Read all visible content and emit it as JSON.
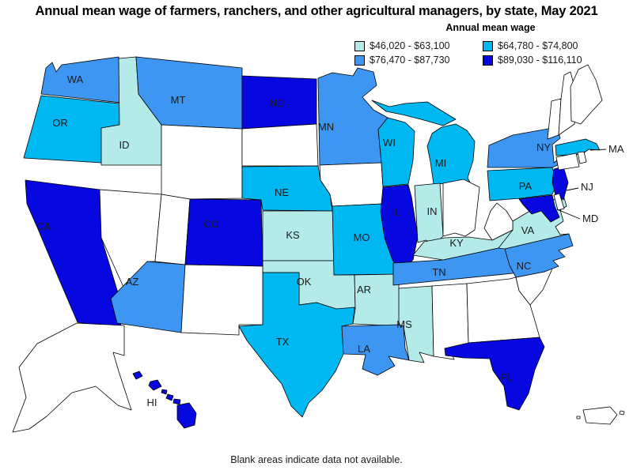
{
  "title": "Annual mean wage of farmers, ranchers, and other agricultural managers, by state, May 2021",
  "legend": {
    "title": "Annual mean wage",
    "no_data_color": "#ffffff",
    "classes": [
      {
        "label": "$46,020 - $63,100",
        "color": "#b4ebe9"
      },
      {
        "label": "$64,780 - $74,800",
        "color": "#00b8f1"
      },
      {
        "label": "$76,470 - $87,730",
        "color": "#3e96f3"
      },
      {
        "label": "$89,030 - $116,110",
        "color": "#0707e0"
      }
    ]
  },
  "footnote": "Blank areas indicate data not available.",
  "chart_data": {
    "type": "choropleth",
    "title": "Annual mean wage of farmers, ranchers, and other agricultural managers, by state, May 2021",
    "legend_title": "Annual mean wage",
    "class_ranges": [
      "$46,020 - $63,100",
      "$64,780 - $74,800",
      "$76,470 - $87,730",
      "$89,030 - $116,110"
    ],
    "no_data_note": "Blank areas indicate data not available.",
    "states": [
      {
        "abbr": "WA",
        "class_index": 2
      },
      {
        "abbr": "OR",
        "class_index": 1
      },
      {
        "abbr": "ID",
        "class_index": 0
      },
      {
        "abbr": "MT",
        "class_index": 2
      },
      {
        "abbr": "WY",
        "class_index": null
      },
      {
        "abbr": "ND",
        "class_index": 3
      },
      {
        "abbr": "SD",
        "class_index": null
      },
      {
        "abbr": "NE",
        "class_index": 1
      },
      {
        "abbr": "KS",
        "class_index": 0
      },
      {
        "abbr": "OK",
        "class_index": 0
      },
      {
        "abbr": "TX",
        "class_index": 1
      },
      {
        "abbr": "MN",
        "class_index": 2
      },
      {
        "abbr": "IA",
        "class_index": null
      },
      {
        "abbr": "MO",
        "class_index": 1
      },
      {
        "abbr": "AR",
        "class_index": 0
      },
      {
        "abbr": "LA",
        "class_index": 2
      },
      {
        "abbr": "WI",
        "class_index": 1
      },
      {
        "abbr": "IL",
        "class_index": 3
      },
      {
        "abbr": "MI",
        "class_index": 1
      },
      {
        "abbr": "IN",
        "class_index": 0
      },
      {
        "abbr": "OH",
        "class_index": null
      },
      {
        "abbr": "KY",
        "class_index": 0
      },
      {
        "abbr": "TN",
        "class_index": 2
      },
      {
        "abbr": "MS",
        "class_index": 0
      },
      {
        "abbr": "AL",
        "class_index": null
      },
      {
        "abbr": "GA",
        "class_index": null
      },
      {
        "abbr": "SC",
        "class_index": null
      },
      {
        "abbr": "FL",
        "class_index": 3
      },
      {
        "abbr": "NC",
        "class_index": 2
      },
      {
        "abbr": "VA",
        "class_index": 0
      },
      {
        "abbr": "WV",
        "class_index": null
      },
      {
        "abbr": "CA",
        "class_index": 3
      },
      {
        "abbr": "NV",
        "class_index": null
      },
      {
        "abbr": "UT",
        "class_index": null
      },
      {
        "abbr": "CO",
        "class_index": 3
      },
      {
        "abbr": "AZ",
        "class_index": 2
      },
      {
        "abbr": "NM",
        "class_index": null
      },
      {
        "abbr": "NY",
        "class_index": 2
      },
      {
        "abbr": "PA",
        "class_index": 1
      },
      {
        "abbr": "NJ",
        "class_index": 3
      },
      {
        "abbr": "MD",
        "class_index": 3
      },
      {
        "abbr": "DE",
        "class_index": null
      },
      {
        "abbr": "MA",
        "class_index": 1
      },
      {
        "abbr": "CT",
        "class_index": null
      },
      {
        "abbr": "RI",
        "class_index": null
      },
      {
        "abbr": "VT",
        "class_index": null
      },
      {
        "abbr": "NH",
        "class_index": null
      },
      {
        "abbr": "ME",
        "class_index": null
      },
      {
        "abbr": "AK",
        "class_index": null
      },
      {
        "abbr": "HI",
        "class_index": 3
      },
      {
        "abbr": "PR",
        "class_index": null
      }
    ]
  }
}
